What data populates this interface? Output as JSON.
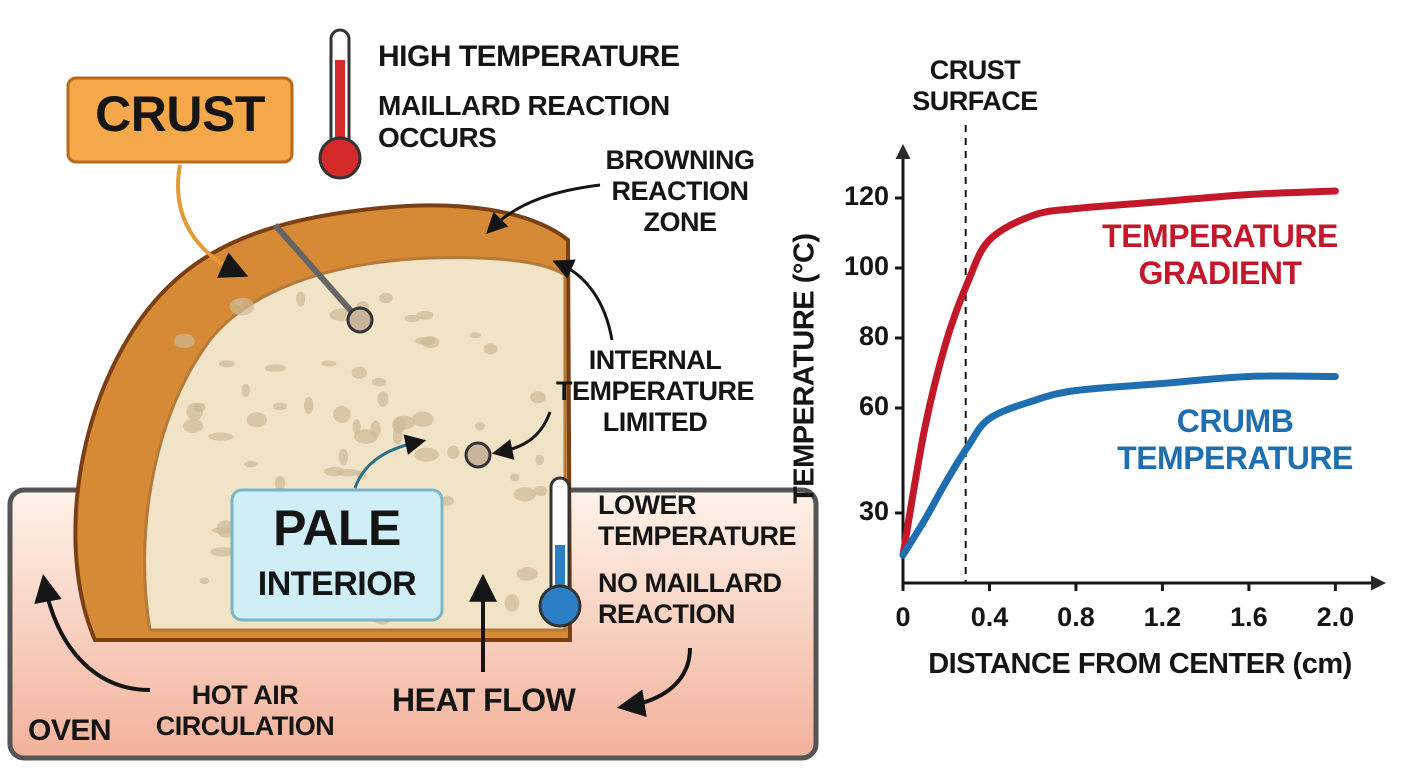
{
  "diagram": {
    "crust": "CRUST",
    "high_temperature": "HIGH TEMPERATURE",
    "maillard": "MAILLARD REACTION OCCURS",
    "browning": "BROWNING REACTION ZONE",
    "internal": "INTERNAL TEMPERATURE LIMITED",
    "pale": "PALE",
    "interior": "INTERIOR",
    "lower_temperature": "LOWER TEMPERATURE",
    "no_maillard": "NO MAILLARD REACTION",
    "hot_air": "HOT AIR CIRCULATION",
    "heat_flow": "HEAT FLOW",
    "oven": "OVEN"
  },
  "chart_data": {
    "type": "line",
    "x_label": "DISTANCE FROM CENTER (cm)",
    "y_label": "TEMPERATURE (°C)",
    "x": [
      0,
      0.1,
      0.2,
      0.3,
      0.4,
      0.6,
      0.8,
      1.2,
      1.6,
      2.0
    ],
    "series": [
      {
        "name": "TEMPERATURE GRADIENT",
        "color": "#c3182a",
        "values": [
          18,
          54,
          79,
          96,
          108,
          115,
          117,
          119,
          121,
          122
        ]
      },
      {
        "name": "CRUMB TEMPERATURE",
        "color": "#1f6fb0",
        "values": [
          18,
          28,
          39,
          49,
          57,
          62,
          65,
          67,
          69,
          69
        ]
      }
    ],
    "xlim": [
      0,
      2.1
    ],
    "ylim": [
      10,
      128
    ],
    "xticks": [
      0,
      0.4,
      0.8,
      1.2,
      1.6,
      {
        "value": 2,
        "label": "2.0"
      }
    ],
    "yticks": [
      30,
      60,
      80,
      100,
      120
    ],
    "annotation": {
      "x": 0.29,
      "label": "CRUST SURFACE"
    }
  }
}
